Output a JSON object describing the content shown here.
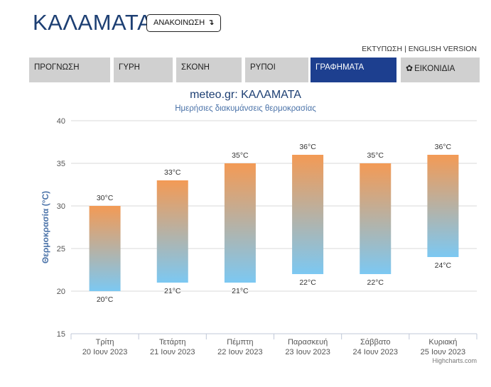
{
  "header": {
    "city": "ΚΑΛΑΜΑΤΑ",
    "announce_label": "ΑΝΑΚΟΙΝΩΣΗ",
    "announce_arrow": "↴",
    "print_label": "ΕΚΤΥΠΩΣΗ",
    "separator": "|",
    "english_label": "ENGLISH VERSION"
  },
  "tabs": [
    {
      "label": "ΠΡΟΓΝΩΣΗ",
      "active": false
    },
    {
      "label": "ΓΥΡΗ",
      "active": false
    },
    {
      "label": "ΣΚΟΝΗ",
      "active": false
    },
    {
      "label": "ΡΥΠΟΙ",
      "active": false
    },
    {
      "label": "ΓΡΑΦΗΜΑΤΑ",
      "active": true
    },
    {
      "label": "ΕΙΚΟΝΙΔΙΑ",
      "active": false,
      "icon": "gear-icon"
    }
  ],
  "colors": {
    "title": "#1d3f73",
    "subtitle": "#4a72a8",
    "tab_bg": "#d0d0d0",
    "tab_active_bg": "#1d3f8f",
    "bar_top": "#f39a55",
    "bar_bottom": "#7cc8f2"
  },
  "chart_data": {
    "type": "bar",
    "subtype": "columnrange",
    "title": "meteo.gr: ΚΑΛΑΜΑΤΑ",
    "subtitle": "Ημερήσιες διακυμάνσεις θερμοκρασίας",
    "ylabel": "Θερμοκρασία (°C)",
    "ylim": [
      15,
      40
    ],
    "yticks": [
      15,
      20,
      25,
      30,
      35,
      40
    ],
    "grid": true,
    "unit": "°C",
    "categories": [
      {
        "day": "Τρίτη",
        "date": "20 Ιουν 2023"
      },
      {
        "day": "Τετάρτη",
        "date": "21 Ιουν 2023"
      },
      {
        "day": "Πέμπτη",
        "date": "22 Ιουν 2023"
      },
      {
        "day": "Παρασκευή",
        "date": "23 Ιουν 2023"
      },
      {
        "day": "Σάββατο",
        "date": "24 Ιουν 2023"
      },
      {
        "day": "Κυριακή",
        "date": "25 Ιουν 2023"
      }
    ],
    "min": [
      20,
      21,
      21,
      22,
      22,
      24
    ],
    "max": [
      30,
      33,
      35,
      36,
      35,
      36
    ],
    "credits": "Highcharts.com"
  }
}
